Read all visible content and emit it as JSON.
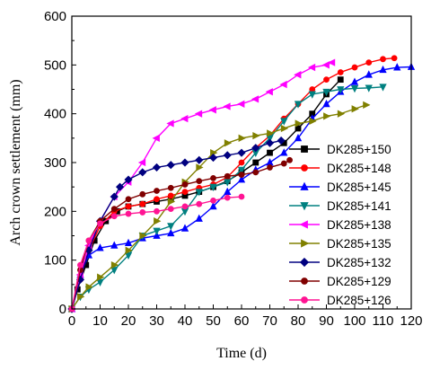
{
  "chart_data": {
    "type": "line",
    "xlabel": "Time (d)",
    "ylabel": "Arch crown settlement (mm)",
    "xlim": [
      0,
      120
    ],
    "ylim": [
      0,
      600
    ],
    "xticks": [
      0,
      10,
      20,
      30,
      40,
      50,
      60,
      70,
      80,
      90,
      100,
      110,
      120
    ],
    "yticks": [
      0,
      100,
      200,
      300,
      400,
      500,
      600
    ],
    "grid": false,
    "legend_position": "right",
    "series": [
      {
        "name": "DK285+150",
        "color": "#000000",
        "marker": "square",
        "x": [
          0,
          2,
          5,
          8,
          12,
          16,
          20,
          25,
          30,
          35,
          40,
          45,
          50,
          55,
          60,
          65,
          70,
          75,
          80,
          85,
          90,
          95
        ],
        "y": [
          0,
          40,
          90,
          140,
          180,
          200,
          210,
          215,
          220,
          225,
          232,
          240,
          250,
          262,
          280,
          300,
          320,
          340,
          370,
          400,
          440,
          470
        ]
      },
      {
        "name": "DK285+148",
        "color": "#ff0000",
        "marker": "circle",
        "x": [
          0,
          3,
          6,
          10,
          15,
          20,
          25,
          30,
          35,
          40,
          45,
          50,
          55,
          60,
          65,
          70,
          75,
          80,
          85,
          90,
          95,
          100,
          105,
          110,
          114
        ],
        "y": [
          0,
          60,
          120,
          170,
          200,
          210,
          215,
          225,
          232,
          240,
          248,
          255,
          270,
          300,
          330,
          355,
          390,
          420,
          450,
          470,
          485,
          495,
          505,
          512,
          514
        ]
      },
      {
        "name": "DK285+145",
        "color": "#0000ff",
        "marker": "triangle-up",
        "x": [
          0,
          3,
          6,
          10,
          15,
          20,
          25,
          30,
          35,
          40,
          45,
          50,
          55,
          60,
          65,
          70,
          75,
          80,
          85,
          90,
          95,
          100,
          105,
          110,
          115,
          120
        ],
        "y": [
          0,
          70,
          110,
          125,
          130,
          135,
          145,
          150,
          155,
          165,
          185,
          210,
          240,
          265,
          285,
          300,
          320,
          350,
          390,
          420,
          445,
          465,
          480,
          490,
          495,
          496
        ]
      },
      {
        "name": "DK285+141",
        "color": "#008080",
        "marker": "triangle-down",
        "x": [
          0,
          3,
          6,
          10,
          15,
          20,
          25,
          30,
          35,
          40,
          45,
          50,
          55,
          60,
          65,
          70,
          75,
          80,
          85,
          90,
          95,
          100,
          105,
          110
        ],
        "y": [
          0,
          25,
          40,
          55,
          80,
          110,
          150,
          160,
          170,
          200,
          240,
          250,
          260,
          285,
          320,
          350,
          385,
          420,
          440,
          445,
          450,
          452,
          453,
          455
        ]
      },
      {
        "name": "DK285+138",
        "color": "#ff00ff",
        "marker": "triangle-left",
        "x": [
          0,
          3,
          6,
          10,
          15,
          20,
          25,
          30,
          35,
          40,
          45,
          50,
          55,
          60,
          65,
          70,
          75,
          80,
          85,
          90,
          92
        ],
        "y": [
          0,
          70,
          130,
          180,
          230,
          260,
          300,
          350,
          380,
          390,
          400,
          408,
          415,
          420,
          430,
          445,
          460,
          480,
          495,
          500,
          505
        ]
      },
      {
        "name": "DK285+135",
        "color": "#808000",
        "marker": "triangle-right",
        "x": [
          0,
          3,
          6,
          10,
          15,
          20,
          25,
          30,
          35,
          40,
          45,
          50,
          55,
          60,
          65,
          70,
          75,
          80,
          85,
          90,
          95,
          100,
          104
        ],
        "y": [
          0,
          25,
          45,
          65,
          90,
          120,
          150,
          180,
          220,
          260,
          290,
          320,
          340,
          350,
          355,
          360,
          370,
          380,
          385,
          395,
          400,
          410,
          418
        ]
      },
      {
        "name": "DK285+132",
        "color": "#000080",
        "marker": "diamond",
        "x": [
          0,
          3,
          6,
          10,
          15,
          17,
          20,
          25,
          30,
          35,
          40,
          45,
          50,
          55,
          60,
          65,
          70,
          74
        ],
        "y": [
          0,
          60,
          120,
          180,
          230,
          250,
          265,
          280,
          290,
          295,
          300,
          305,
          310,
          315,
          320,
          330,
          340,
          345
        ]
      },
      {
        "name": "DK285+129",
        "color": "#800000",
        "marker": "circle",
        "x": [
          0,
          3,
          6,
          10,
          15,
          20,
          25,
          30,
          35,
          40,
          45,
          50,
          55,
          60,
          65,
          70,
          75,
          77
        ],
        "y": [
          0,
          80,
          140,
          180,
          205,
          225,
          235,
          242,
          248,
          255,
          262,
          268,
          272,
          275,
          280,
          290,
          298,
          305
        ]
      },
      {
        "name": "DK285+126",
        "color": "#ff1493",
        "marker": "circle",
        "x": [
          0,
          3,
          6,
          10,
          15,
          20,
          25,
          30,
          35,
          40,
          45,
          50,
          55,
          60
        ],
        "y": [
          0,
          90,
          140,
          175,
          190,
          195,
          198,
          200,
          205,
          210,
          215,
          222,
          228,
          230
        ]
      }
    ]
  }
}
